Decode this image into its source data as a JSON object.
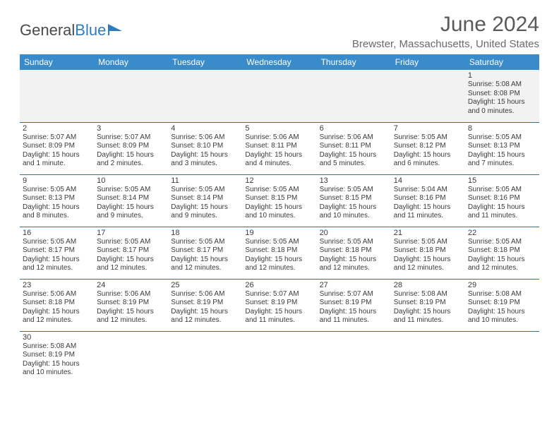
{
  "logo": {
    "text1": "General",
    "text2": "Blue",
    "accent_color": "#2f7bbf"
  },
  "title": "June 2024",
  "location": "Brewster, Massachusetts, United States",
  "header_bg": "#3a8bc9",
  "header_fg": "#ffffff",
  "divider_color": "#2f6fa8",
  "day_headers": [
    "Sunday",
    "Monday",
    "Tuesday",
    "Wednesday",
    "Thursday",
    "Friday",
    "Saturday"
  ],
  "weeks": [
    [
      null,
      null,
      null,
      null,
      null,
      null,
      {
        "n": "1",
        "sr": "Sunrise: 5:08 AM",
        "ss": "Sunset: 8:08 PM",
        "d1": "Daylight: 15 hours",
        "d2": "and 0 minutes."
      }
    ],
    [
      {
        "n": "2",
        "sr": "Sunrise: 5:07 AM",
        "ss": "Sunset: 8:09 PM",
        "d1": "Daylight: 15 hours",
        "d2": "and 1 minute."
      },
      {
        "n": "3",
        "sr": "Sunrise: 5:07 AM",
        "ss": "Sunset: 8:09 PM",
        "d1": "Daylight: 15 hours",
        "d2": "and 2 minutes."
      },
      {
        "n": "4",
        "sr": "Sunrise: 5:06 AM",
        "ss": "Sunset: 8:10 PM",
        "d1": "Daylight: 15 hours",
        "d2": "and 3 minutes."
      },
      {
        "n": "5",
        "sr": "Sunrise: 5:06 AM",
        "ss": "Sunset: 8:11 PM",
        "d1": "Daylight: 15 hours",
        "d2": "and 4 minutes."
      },
      {
        "n": "6",
        "sr": "Sunrise: 5:06 AM",
        "ss": "Sunset: 8:11 PM",
        "d1": "Daylight: 15 hours",
        "d2": "and 5 minutes."
      },
      {
        "n": "7",
        "sr": "Sunrise: 5:05 AM",
        "ss": "Sunset: 8:12 PM",
        "d1": "Daylight: 15 hours",
        "d2": "and 6 minutes."
      },
      {
        "n": "8",
        "sr": "Sunrise: 5:05 AM",
        "ss": "Sunset: 8:13 PM",
        "d1": "Daylight: 15 hours",
        "d2": "and 7 minutes."
      }
    ],
    [
      {
        "n": "9",
        "sr": "Sunrise: 5:05 AM",
        "ss": "Sunset: 8:13 PM",
        "d1": "Daylight: 15 hours",
        "d2": "and 8 minutes."
      },
      {
        "n": "10",
        "sr": "Sunrise: 5:05 AM",
        "ss": "Sunset: 8:14 PM",
        "d1": "Daylight: 15 hours",
        "d2": "and 9 minutes."
      },
      {
        "n": "11",
        "sr": "Sunrise: 5:05 AM",
        "ss": "Sunset: 8:14 PM",
        "d1": "Daylight: 15 hours",
        "d2": "and 9 minutes."
      },
      {
        "n": "12",
        "sr": "Sunrise: 5:05 AM",
        "ss": "Sunset: 8:15 PM",
        "d1": "Daylight: 15 hours",
        "d2": "and 10 minutes."
      },
      {
        "n": "13",
        "sr": "Sunrise: 5:05 AM",
        "ss": "Sunset: 8:15 PM",
        "d1": "Daylight: 15 hours",
        "d2": "and 10 minutes."
      },
      {
        "n": "14",
        "sr": "Sunrise: 5:04 AM",
        "ss": "Sunset: 8:16 PM",
        "d1": "Daylight: 15 hours",
        "d2": "and 11 minutes."
      },
      {
        "n": "15",
        "sr": "Sunrise: 5:05 AM",
        "ss": "Sunset: 8:16 PM",
        "d1": "Daylight: 15 hours",
        "d2": "and 11 minutes."
      }
    ],
    [
      {
        "n": "16",
        "sr": "Sunrise: 5:05 AM",
        "ss": "Sunset: 8:17 PM",
        "d1": "Daylight: 15 hours",
        "d2": "and 12 minutes."
      },
      {
        "n": "17",
        "sr": "Sunrise: 5:05 AM",
        "ss": "Sunset: 8:17 PM",
        "d1": "Daylight: 15 hours",
        "d2": "and 12 minutes."
      },
      {
        "n": "18",
        "sr": "Sunrise: 5:05 AM",
        "ss": "Sunset: 8:17 PM",
        "d1": "Daylight: 15 hours",
        "d2": "and 12 minutes."
      },
      {
        "n": "19",
        "sr": "Sunrise: 5:05 AM",
        "ss": "Sunset: 8:18 PM",
        "d1": "Daylight: 15 hours",
        "d2": "and 12 minutes."
      },
      {
        "n": "20",
        "sr": "Sunrise: 5:05 AM",
        "ss": "Sunset: 8:18 PM",
        "d1": "Daylight: 15 hours",
        "d2": "and 12 minutes."
      },
      {
        "n": "21",
        "sr": "Sunrise: 5:05 AM",
        "ss": "Sunset: 8:18 PM",
        "d1": "Daylight: 15 hours",
        "d2": "and 12 minutes."
      },
      {
        "n": "22",
        "sr": "Sunrise: 5:05 AM",
        "ss": "Sunset: 8:18 PM",
        "d1": "Daylight: 15 hours",
        "d2": "and 12 minutes."
      }
    ],
    [
      {
        "n": "23",
        "sr": "Sunrise: 5:06 AM",
        "ss": "Sunset: 8:18 PM",
        "d1": "Daylight: 15 hours",
        "d2": "and 12 minutes."
      },
      {
        "n": "24",
        "sr": "Sunrise: 5:06 AM",
        "ss": "Sunset: 8:19 PM",
        "d1": "Daylight: 15 hours",
        "d2": "and 12 minutes."
      },
      {
        "n": "25",
        "sr": "Sunrise: 5:06 AM",
        "ss": "Sunset: 8:19 PM",
        "d1": "Daylight: 15 hours",
        "d2": "and 12 minutes."
      },
      {
        "n": "26",
        "sr": "Sunrise: 5:07 AM",
        "ss": "Sunset: 8:19 PM",
        "d1": "Daylight: 15 hours",
        "d2": "and 11 minutes."
      },
      {
        "n": "27",
        "sr": "Sunrise: 5:07 AM",
        "ss": "Sunset: 8:19 PM",
        "d1": "Daylight: 15 hours",
        "d2": "and 11 minutes."
      },
      {
        "n": "28",
        "sr": "Sunrise: 5:08 AM",
        "ss": "Sunset: 8:19 PM",
        "d1": "Daylight: 15 hours",
        "d2": "and 11 minutes."
      },
      {
        "n": "29",
        "sr": "Sunrise: 5:08 AM",
        "ss": "Sunset: 8:19 PM",
        "d1": "Daylight: 15 hours",
        "d2": "and 10 minutes."
      }
    ],
    [
      {
        "n": "30",
        "sr": "Sunrise: 5:08 AM",
        "ss": "Sunset: 8:19 PM",
        "d1": "Daylight: 15 hours",
        "d2": "and 10 minutes."
      },
      null,
      null,
      null,
      null,
      null,
      null
    ]
  ]
}
